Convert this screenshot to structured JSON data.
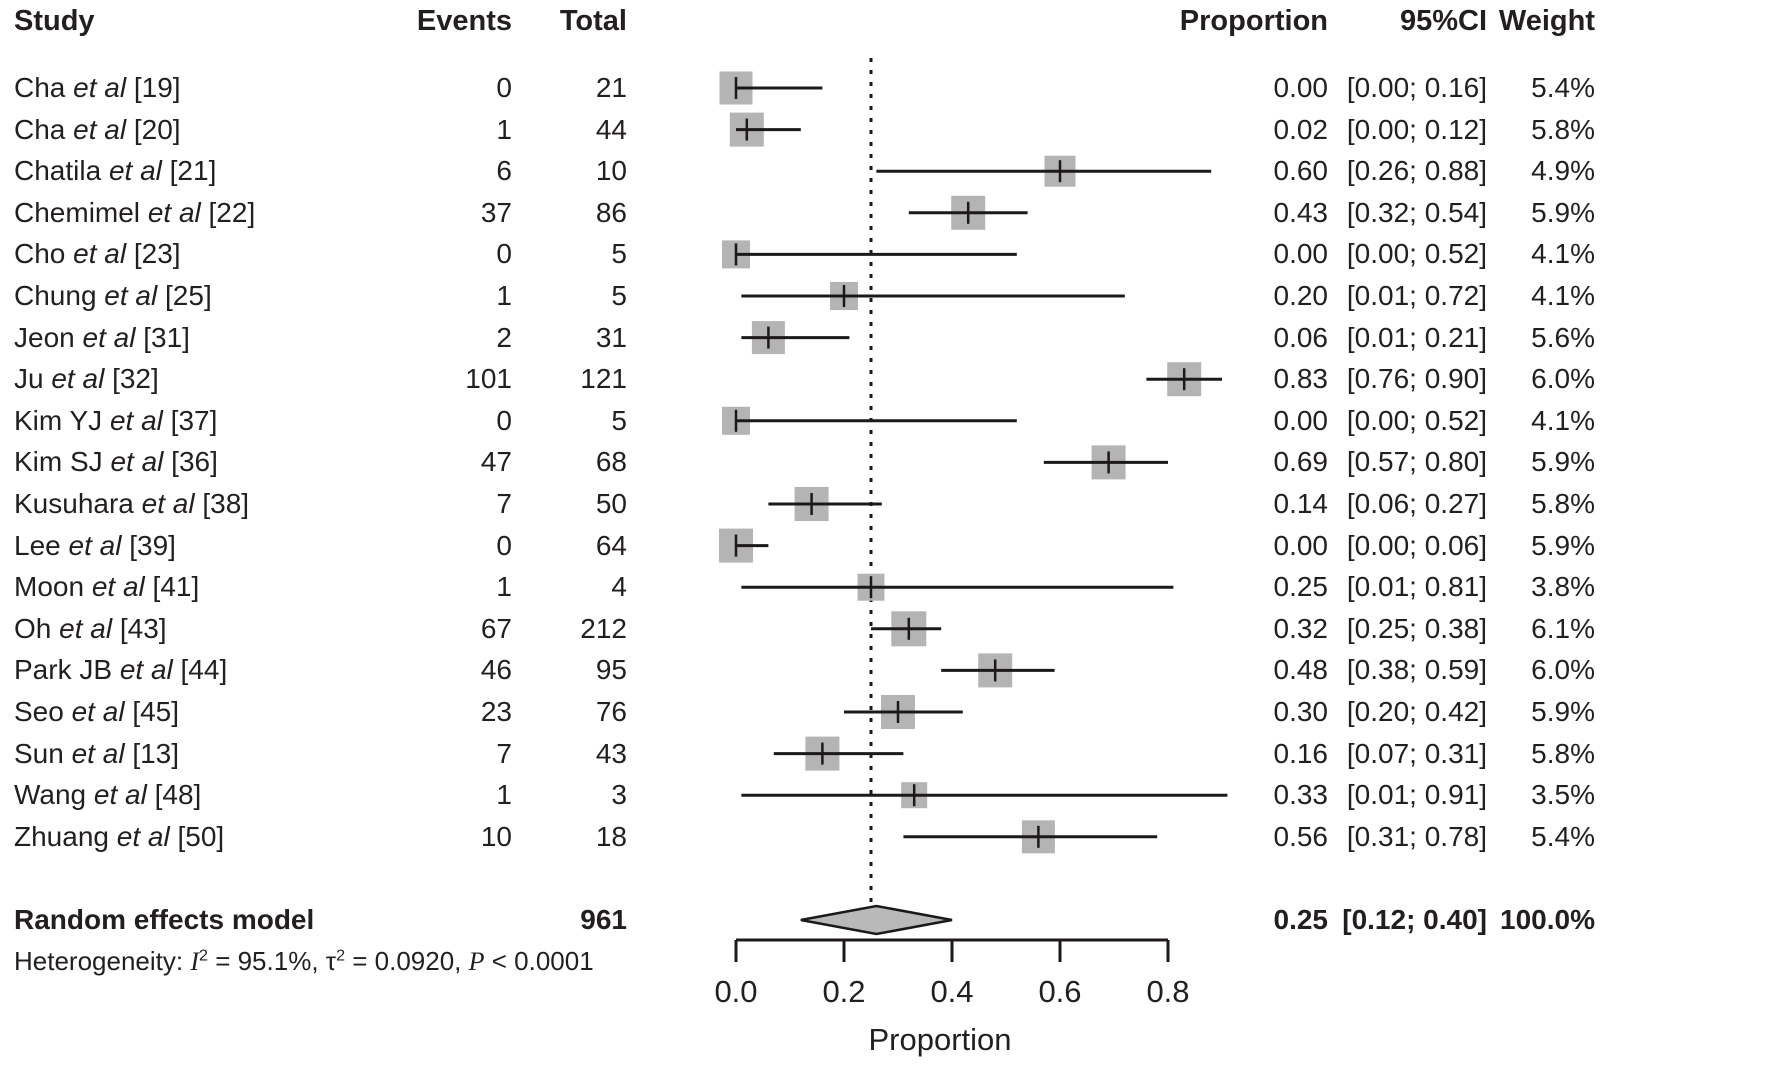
{
  "headers": {
    "study": "Study",
    "events": "Events",
    "total": "Total",
    "proportion": "Proportion",
    "ci": "95%CI",
    "weight": "Weight"
  },
  "colors": {
    "text": "#231f20",
    "line": "#1d191a",
    "square_fill": "#b4b4b4",
    "diamond_fill": "#b9b9b9",
    "background": "#ffffff"
  },
  "heterogeneity": {
    "prefix": "Heterogeneity: ",
    "i_symbol": "I",
    "i_sup": "2",
    "seg1": " = 95.1%, ",
    "tau_symbol": "τ",
    "tau_sup": "2",
    "seg2": " = 0.0920, ",
    "p_symbol": "P",
    "seg3": " < 0.0001",
    "full_text": "Heterogeneity: I2 = 95.1%, τ2 = 0.0920, P < 0.0001"
  },
  "chart_data": {
    "type": "forest",
    "title": "",
    "xlabel": "Proportion",
    "x_ticks": [
      0.0,
      0.2,
      0.4,
      0.6,
      0.8
    ],
    "x_tick_labels": [
      "0.0",
      "0.2",
      "0.4",
      "0.6",
      "0.8"
    ],
    "xlim": [
      0.0,
      0.8
    ],
    "ref_line": 0.25,
    "grid": false,
    "legend": "none",
    "studies": [
      {
        "study_pre": "Cha ",
        "etal": "et al",
        "study_post": " [19]",
        "events": "0",
        "total": "21",
        "estimate": 0.0,
        "ci_low": 0.0,
        "ci_high": 0.16,
        "proportion_label": "0.00",
        "ci_label": "[0.00; 0.16]",
        "weight_label": "5.4%",
        "weight": 5.4
      },
      {
        "study_pre": "Cha ",
        "etal": "et al",
        "study_post": " [20]",
        "events": "1",
        "total": "44",
        "estimate": 0.02,
        "ci_low": 0.0,
        "ci_high": 0.12,
        "proportion_label": "0.02",
        "ci_label": "[0.00; 0.12]",
        "weight_label": "5.8%",
        "weight": 5.8
      },
      {
        "study_pre": "Chatila ",
        "etal": "et al",
        "study_post": " [21]",
        "events": "6",
        "total": "10",
        "estimate": 0.6,
        "ci_low": 0.26,
        "ci_high": 0.88,
        "proportion_label": "0.60",
        "ci_label": "[0.26; 0.88]",
        "weight_label": "4.9%",
        "weight": 4.9
      },
      {
        "study_pre": "Chemimel ",
        "etal": "et al",
        "study_post": " [22]",
        "events": "37",
        "total": "86",
        "estimate": 0.43,
        "ci_low": 0.32,
        "ci_high": 0.54,
        "proportion_label": "0.43",
        "ci_label": "[0.32; 0.54]",
        "weight_label": "5.9%",
        "weight": 5.9
      },
      {
        "study_pre": "Cho ",
        "etal": "et al",
        "study_post": " [23]",
        "events": "0",
        "total": "5",
        "estimate": 0.0,
        "ci_low": 0.0,
        "ci_high": 0.52,
        "proportion_label": "0.00",
        "ci_label": "[0.00; 0.52]",
        "weight_label": "4.1%",
        "weight": 4.1
      },
      {
        "study_pre": "Chung ",
        "etal": "et al",
        "study_post": " [25]",
        "events": "1",
        "total": "5",
        "estimate": 0.2,
        "ci_low": 0.01,
        "ci_high": 0.72,
        "proportion_label": "0.20",
        "ci_label": "[0.01; 0.72]",
        "weight_label": "4.1%",
        "weight": 4.1
      },
      {
        "study_pre": "Jeon ",
        "etal": "et al",
        "study_post": " [31]",
        "events": "2",
        "total": "31",
        "estimate": 0.06,
        "ci_low": 0.01,
        "ci_high": 0.21,
        "proportion_label": "0.06",
        "ci_label": "[0.01; 0.21]",
        "weight_label": "5.6%",
        "weight": 5.6
      },
      {
        "study_pre": "Ju ",
        "etal": "et al",
        "study_post": " [32]",
        "events": "101",
        "total": "121",
        "estimate": 0.83,
        "ci_low": 0.76,
        "ci_high": 0.9,
        "proportion_label": "0.83",
        "ci_label": "[0.76; 0.90]",
        "weight_label": "6.0%",
        "weight": 6.0
      },
      {
        "study_pre": "Kim YJ ",
        "etal": "et al",
        "study_post": " [37]",
        "events": "0",
        "total": "5",
        "estimate": 0.0,
        "ci_low": 0.0,
        "ci_high": 0.52,
        "proportion_label": "0.00",
        "ci_label": "[0.00; 0.52]",
        "weight_label": "4.1%",
        "weight": 4.1
      },
      {
        "study_pre": "Kim SJ ",
        "etal": "et al",
        "study_post": " [36]",
        "events": "47",
        "total": "68",
        "estimate": 0.69,
        "ci_low": 0.57,
        "ci_high": 0.8,
        "proportion_label": "0.69",
        "ci_label": "[0.57; 0.80]",
        "weight_label": "5.9%",
        "weight": 5.9
      },
      {
        "study_pre": "Kusuhara ",
        "etal": "et al",
        "study_post": " [38]",
        "events": "7",
        "total": "50",
        "estimate": 0.14,
        "ci_low": 0.06,
        "ci_high": 0.27,
        "proportion_label": "0.14",
        "ci_label": "[0.06; 0.27]",
        "weight_label": "5.8%",
        "weight": 5.8
      },
      {
        "study_pre": "Lee ",
        "etal": "et al",
        "study_post": " [39]",
        "events": "0",
        "total": "64",
        "estimate": 0.0,
        "ci_low": 0.0,
        "ci_high": 0.06,
        "proportion_label": "0.00",
        "ci_label": "[0.00; 0.06]",
        "weight_label": "5.9%",
        "weight": 5.9
      },
      {
        "study_pre": "Moon ",
        "etal": "et al",
        "study_post": " [41]",
        "events": "1",
        "total": "4",
        "estimate": 0.25,
        "ci_low": 0.01,
        "ci_high": 0.81,
        "proportion_label": "0.25",
        "ci_label": "[0.01; 0.81]",
        "weight_label": "3.8%",
        "weight": 3.8
      },
      {
        "study_pre": "Oh ",
        "etal": "et al",
        "study_post": " [43]",
        "events": "67",
        "total": "212",
        "estimate": 0.32,
        "ci_low": 0.25,
        "ci_high": 0.38,
        "proportion_label": "0.32",
        "ci_label": "[0.25; 0.38]",
        "weight_label": "6.1%",
        "weight": 6.1
      },
      {
        "study_pre": "Park JB ",
        "etal": "et al",
        "study_post": " [44]",
        "events": "46",
        "total": "95",
        "estimate": 0.48,
        "ci_low": 0.38,
        "ci_high": 0.59,
        "proportion_label": "0.48",
        "ci_label": "[0.38; 0.59]",
        "weight_label": "6.0%",
        "weight": 6.0
      },
      {
        "study_pre": "Seo ",
        "etal": "et al",
        "study_post": " [45]",
        "events": "23",
        "total": "76",
        "estimate": 0.3,
        "ci_low": 0.2,
        "ci_high": 0.42,
        "proportion_label": "0.30",
        "ci_label": "[0.20; 0.42]",
        "weight_label": "5.9%",
        "weight": 5.9
      },
      {
        "study_pre": "Sun ",
        "etal": "et al",
        "study_post": " [13]",
        "events": "7",
        "total": "43",
        "estimate": 0.16,
        "ci_low": 0.07,
        "ci_high": 0.31,
        "proportion_label": "0.16",
        "ci_label": "[0.07; 0.31]",
        "weight_label": "5.8%",
        "weight": 5.8
      },
      {
        "study_pre": "Wang ",
        "etal": "et al",
        "study_post": " [48]",
        "events": "1",
        "total": "3",
        "estimate": 0.33,
        "ci_low": 0.01,
        "ci_high": 0.91,
        "proportion_label": "0.33",
        "ci_label": "[0.01; 0.91]",
        "weight_label": "3.5%",
        "weight": 3.5
      },
      {
        "study_pre": "Zhuang ",
        "etal": "et al",
        "study_post": " [50]",
        "events": "10",
        "total": "18",
        "estimate": 0.56,
        "ci_low": 0.31,
        "ci_high": 0.78,
        "proportion_label": "0.56",
        "ci_label": "[0.31; 0.78]",
        "weight_label": "5.4%",
        "weight": 5.4
      }
    ],
    "summary": {
      "label": "Random effects model",
      "total": "961",
      "estimate": 0.25,
      "ci_low": 0.12,
      "ci_high": 0.4,
      "proportion_label": "0.25",
      "ci_label": "[0.12; 0.40]",
      "weight_label": "100.0%"
    }
  }
}
